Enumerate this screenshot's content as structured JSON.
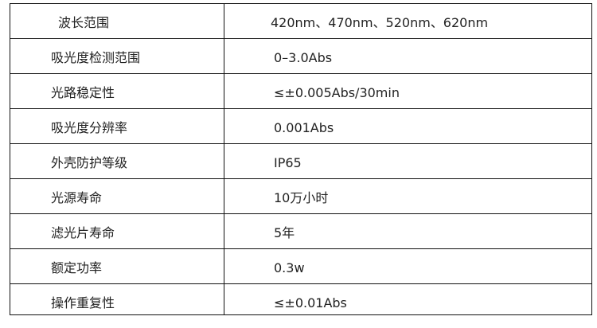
{
  "rows": [
    {
      "label": "波长范围",
      "value": "420nm、470nm、520nm、620nm"
    },
    {
      "label": "吸光度检测范围",
      "value": "0–3.0Abs"
    },
    {
      "label": "光路稳定性",
      "value": "≤±0.005Abs/30min"
    },
    {
      "label": "吸光度分辨率",
      "value": "0.001Abs"
    },
    {
      "label": "外壳防护等级",
      "value": "IP65"
    },
    {
      "label": "光源寿命",
      "value": "10万小时"
    },
    {
      "label": "滤光片寿命",
      "value": "5年"
    },
    {
      "label": "额定功率",
      "value": "0.3w"
    },
    {
      "label": "操作重复性",
      "value": "≤±0.01Abs"
    }
  ]
}
